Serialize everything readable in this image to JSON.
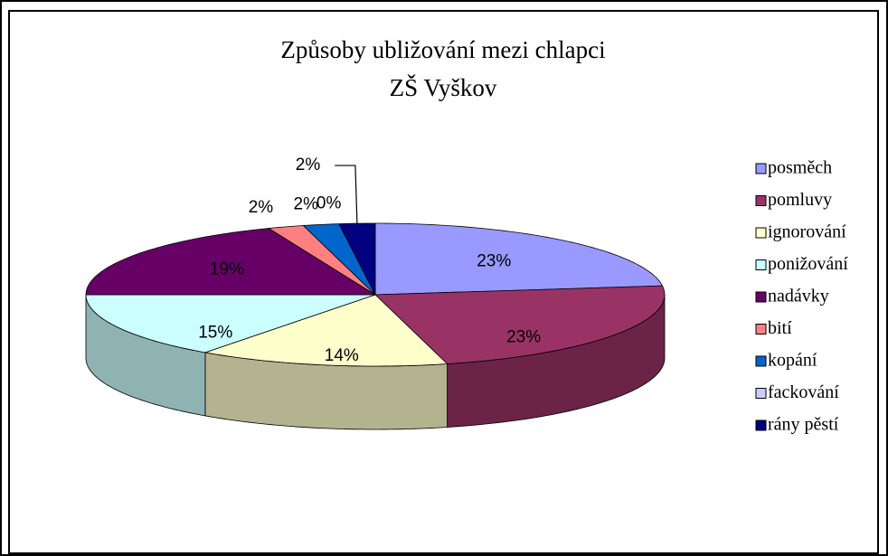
{
  "chart_data": {
    "type": "pie",
    "title": "Způsoby ubližování mezi chlapci",
    "subtitle": "ZŠ Vyškov",
    "categories": [
      "posměch",
      "pomluvy",
      "ignorování",
      "ponižování",
      "nadávky",
      "bití",
      "kopání",
      "fackování",
      "rány pěstí"
    ],
    "values": [
      23,
      23,
      14,
      15,
      19,
      2,
      2,
      0,
      2
    ],
    "value_labels": [
      "23%",
      "23%",
      "14%",
      "15%",
      "19%",
      "2%",
      "2%",
      "0%",
      "2%"
    ],
    "colors": [
      "#9999ff",
      "#993366",
      "#ffffcc",
      "#ccffff",
      "#660066",
      "#ff8080",
      "#0066cc",
      "#ccccff",
      "#000080"
    ],
    "legend": "right"
  }
}
